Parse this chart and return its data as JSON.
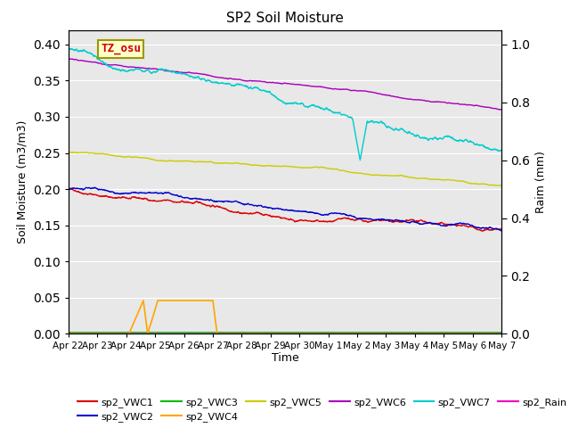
{
  "title": "SP2 Soil Moisture",
  "xlabel": "Time",
  "ylabel_left": "Soil Moisture (m3/m3)",
  "ylabel_right": "Raim (mm)",
  "background_color": "#e8e8e8",
  "ylim_left": [
    0.0,
    0.42
  ],
  "ylim_right": [
    0.0,
    1.05
  ],
  "tick_labels": [
    "Apr 22",
    "Apr 23",
    "Apr 24",
    "Apr 25",
    "Apr 26",
    "Apr 27",
    "Apr 28",
    "Apr 29",
    "Apr 30",
    "May 1",
    "May 2",
    "May 3",
    "May 4",
    "May 5",
    "May 6",
    "May 7"
  ],
  "yticks_left": [
    0.0,
    0.05,
    0.1,
    0.15,
    0.2,
    0.25,
    0.3,
    0.35,
    0.4
  ],
  "yticks_right": [
    0.0,
    0.2,
    0.4,
    0.6,
    0.8,
    1.0
  ],
  "series": {
    "sp2_VWC1": {
      "color": "#dd0000",
      "lw": 1.0
    },
    "sp2_VWC2": {
      "color": "#0000cc",
      "lw": 1.0
    },
    "sp2_VWC3": {
      "color": "#00bb00",
      "lw": 1.0
    },
    "sp2_VWC4": {
      "color": "#ffa500",
      "lw": 1.2
    },
    "sp2_VWC5": {
      "color": "#cccc00",
      "lw": 1.0
    },
    "sp2_VWC6": {
      "color": "#aa00bb",
      "lw": 1.0
    },
    "sp2_VWC7": {
      "color": "#00cccc",
      "lw": 1.0
    },
    "sp2_Rain": {
      "color": "#ee00bb",
      "lw": 1.0
    }
  },
  "annotation_text": "TZ_osu",
  "annotation_color": "#cc0000",
  "annotation_bg": "#ffffcc",
  "annotation_border": "#999900",
  "legend_ncol_row1": 6,
  "legend_ncol_row2": 2
}
